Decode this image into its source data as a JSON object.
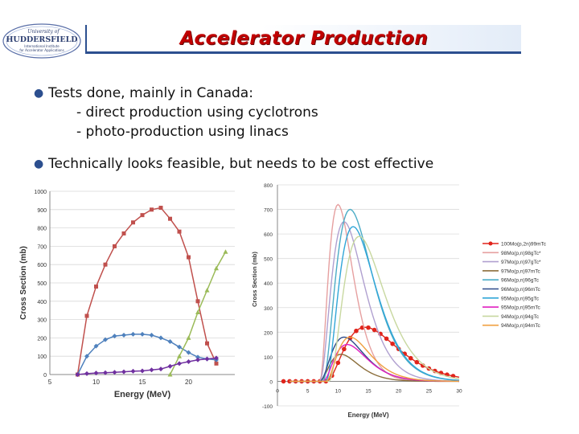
{
  "logo": {
    "line1": "University of",
    "line2": "HUDDERSFIELD",
    "line3": "International Institute",
    "line4": "for Accelerator Applications"
  },
  "title": "Accelerator Production",
  "bullets": [
    {
      "text": "Tests done, mainly in Canada:",
      "subs": [
        "- direct production using cyclotrons",
        "- photo-production using linacs"
      ]
    },
    {
      "text": "Technically looks feasible, but needs to be cost effective",
      "subs": []
    }
  ],
  "chart_data": [
    {
      "type": "line",
      "xlabel": "Energy (MeV)",
      "ylabel": "Cross Section (mb)",
      "xlim": [
        5,
        25
      ],
      "ylim": [
        0,
        1000
      ],
      "xticks": [
        5,
        10,
        15,
        20
      ],
      "yticks": [
        0,
        100,
        200,
        300,
        400,
        500,
        600,
        700,
        800,
        900,
        1000
      ],
      "series": [
        {
          "color": "#c0504d",
          "marker": "square",
          "x": [
            8,
            9,
            10,
            11,
            12,
            13,
            14,
            15,
            16,
            17,
            18,
            19,
            20,
            21,
            22,
            23
          ],
          "y": [
            0,
            320,
            480,
            600,
            700,
            770,
            830,
            870,
            900,
            910,
            850,
            780,
            640,
            400,
            170,
            60
          ]
        },
        {
          "color": "#4f81bd",
          "marker": "diamond",
          "x": [
            8,
            9,
            10,
            11,
            12,
            13,
            14,
            15,
            16,
            17,
            18,
            19,
            20,
            21,
            22,
            23
          ],
          "y": [
            0,
            100,
            155,
            190,
            210,
            215,
            220,
            220,
            215,
            200,
            180,
            150,
            120,
            95,
            85,
            80
          ]
        },
        {
          "color": "#9bbb59",
          "marker": "triangle",
          "x": [
            18,
            19,
            20,
            21,
            22,
            23,
            24
          ],
          "y": [
            0,
            100,
            200,
            340,
            460,
            580,
            670
          ]
        },
        {
          "color": "#7030a0",
          "marker": "diamond",
          "x": [
            8,
            9,
            10,
            11,
            12,
            13,
            14,
            15,
            16,
            17,
            18,
            19,
            20,
            21,
            22,
            23
          ],
          "y": [
            0,
            5,
            8,
            10,
            12,
            15,
            18,
            20,
            25,
            30,
            45,
            60,
            70,
            80,
            85,
            90
          ]
        }
      ]
    },
    {
      "type": "line",
      "xlabel": "Energy (MeV)",
      "ylabel": "Cross Section (mb)",
      "xlim": [
        0,
        30
      ],
      "ylim": [
        -100,
        800
      ],
      "xticks": [
        0,
        5,
        10,
        15,
        20,
        25,
        30
      ],
      "yticks": [
        -100,
        0,
        100,
        200,
        300,
        400,
        500,
        600,
        700,
        800
      ],
      "legend_position": "right",
      "series": [
        {
          "name": "100Mo(p,2n)99mTc",
          "color": "#e0241b",
          "marker": "circle",
          "peak": 220,
          "center": 14.5,
          "width": 5.5,
          "onset": 8
        },
        {
          "name": "98Mo(p,n)98gTc*",
          "color": "#e6a0a0",
          "peak": 720,
          "center": 10,
          "width": 2.5,
          "onset": 7
        },
        {
          "name": "97Mo(p,n)97gTc*",
          "color": "#b0a0d0",
          "peak": 650,
          "center": 11,
          "width": 3,
          "onset": 7
        },
        {
          "name": "97Mo(p,n)97mTc",
          "color": "#8b6d3a",
          "peak": 110,
          "center": 10.5,
          "width": 2.5,
          "onset": 7
        },
        {
          "name": "96Mo(p,n)96gTc",
          "color": "#4bacc6",
          "peak": 700,
          "center": 12,
          "width": 3.2,
          "onset": 7.5
        },
        {
          "name": "96Mo(p,n)96mTc",
          "color": "#2e4a8a",
          "peak": 180,
          "center": 11,
          "width": 3,
          "onset": 7
        },
        {
          "name": "95Mo(p,n)95gTc",
          "color": "#31a6d8",
          "peak": 630,
          "center": 12.5,
          "width": 3.5,
          "onset": 8
        },
        {
          "name": "95Mo(p,n)95mTc",
          "color": "#e020c0",
          "peak": 150,
          "center": 11.5,
          "width": 3,
          "onset": 7.5
        },
        {
          "name": "94Mo(p,n)94gTc",
          "color": "#c8d8a0",
          "peak": 590,
          "center": 13.5,
          "width": 3.5,
          "onset": 8.5
        },
        {
          "name": "94Mo(p,n)94mTc",
          "color": "#f0a040",
          "peak": 180,
          "center": 12,
          "width": 3.5,
          "onset": 8
        }
      ]
    }
  ]
}
